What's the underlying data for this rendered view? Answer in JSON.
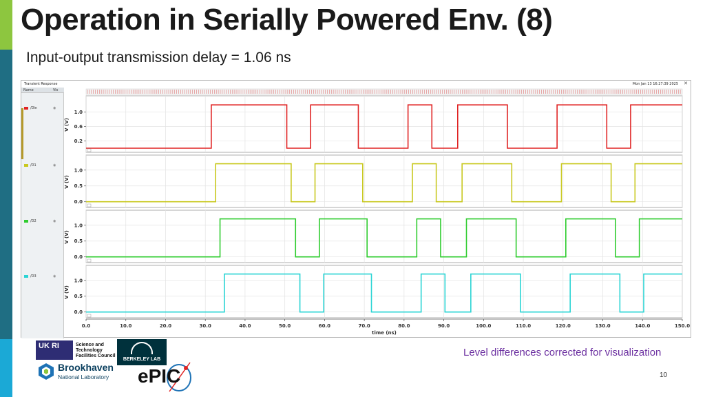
{
  "slide": {
    "title": "Operation in Serially Powered Env. (8)",
    "subtitle": "Input-output transmission delay = 1.06 ns",
    "note": "Level differences corrected for visualization",
    "page_number": "10",
    "note_color": "#6b2fa0"
  },
  "viewer": {
    "window_title": "Transient Response",
    "date": "Mon Jan 13 16:27:39 2025",
    "close_glyph": "✕",
    "name_header": "Name",
    "vis_header": "Vis",
    "eye_glyph": "◉",
    "signals": [
      {
        "name": "/Din",
        "color": "#e02424"
      },
      {
        "name": "/D1",
        "color": "#c8c81e"
      },
      {
        "name": "/D2",
        "color": "#2ecc2e"
      },
      {
        "name": "/D3",
        "color": "#2ad4d4"
      }
    ]
  },
  "chart_data": {
    "type": "line",
    "title": "Transient Response",
    "xlabel": "time (ns)",
    "ylabel": "V (V)",
    "xlim": [
      0,
      150
    ],
    "x_ticks": [
      "0.0",
      "10.0",
      "20.0",
      "30.0",
      "40.0",
      "50.0",
      "60.0",
      "70.0",
      "80.0",
      "90.0",
      "100.0",
      "110.0",
      "120.0",
      "130.0",
      "140.0",
      "150.0"
    ],
    "grid": true,
    "series": [
      {
        "name": "/Din",
        "color": "#e02424",
        "y_ticks": [
          "1.0",
          "0.6",
          "0.2"
        ],
        "ylim": [
          0.0,
          1.3
        ],
        "low": 0.0,
        "high": 1.2,
        "transitions": [
          31.5,
          50.5,
          56.5,
          68.5,
          81.0,
          87.0,
          93.5,
          106.0,
          118.5,
          131.0,
          137.0,
          150.0
        ]
      },
      {
        "name": "/D1",
        "color": "#c8c81e",
        "y_ticks": [
          "1.0",
          "0.5",
          "0.0"
        ],
        "ylim": [
          -0.05,
          1.3
        ],
        "low": 0.0,
        "high": 1.2,
        "transitions": [
          32.6,
          51.6,
          57.6,
          69.6,
          82.1,
          88.1,
          94.6,
          107.1,
          119.6,
          132.1,
          138.1,
          150.0
        ]
      },
      {
        "name": "/D2",
        "color": "#2ecc2e",
        "y_ticks": [
          "1.0",
          "0.5",
          "0.0"
        ],
        "ylim": [
          -0.05,
          1.3
        ],
        "low": 0.0,
        "high": 1.2,
        "transitions": [
          33.7,
          52.7,
          58.7,
          70.7,
          83.2,
          89.2,
          95.7,
          108.2,
          120.7,
          133.2,
          139.2,
          150.0
        ]
      },
      {
        "name": "/D3",
        "color": "#2ad4d4",
        "y_ticks": [
          "1.0",
          "0.5",
          "0.0"
        ],
        "ylim": [
          -0.05,
          1.3
        ],
        "low": 0.0,
        "high": 1.2,
        "transitions": [
          34.8,
          53.8,
          59.8,
          71.8,
          84.3,
          90.3,
          96.8,
          109.3,
          121.8,
          134.3,
          140.3,
          150.0
        ]
      }
    ]
  },
  "logos": {
    "ukri": "UK RI",
    "stfc_lines": [
      "Science and",
      "Technology",
      "Facilities Council"
    ],
    "berkeley": "BERKELEY LAB",
    "bnl_name": "Brookhaven",
    "bnl_sub": "National Laboratory",
    "epic": "ePIC"
  }
}
